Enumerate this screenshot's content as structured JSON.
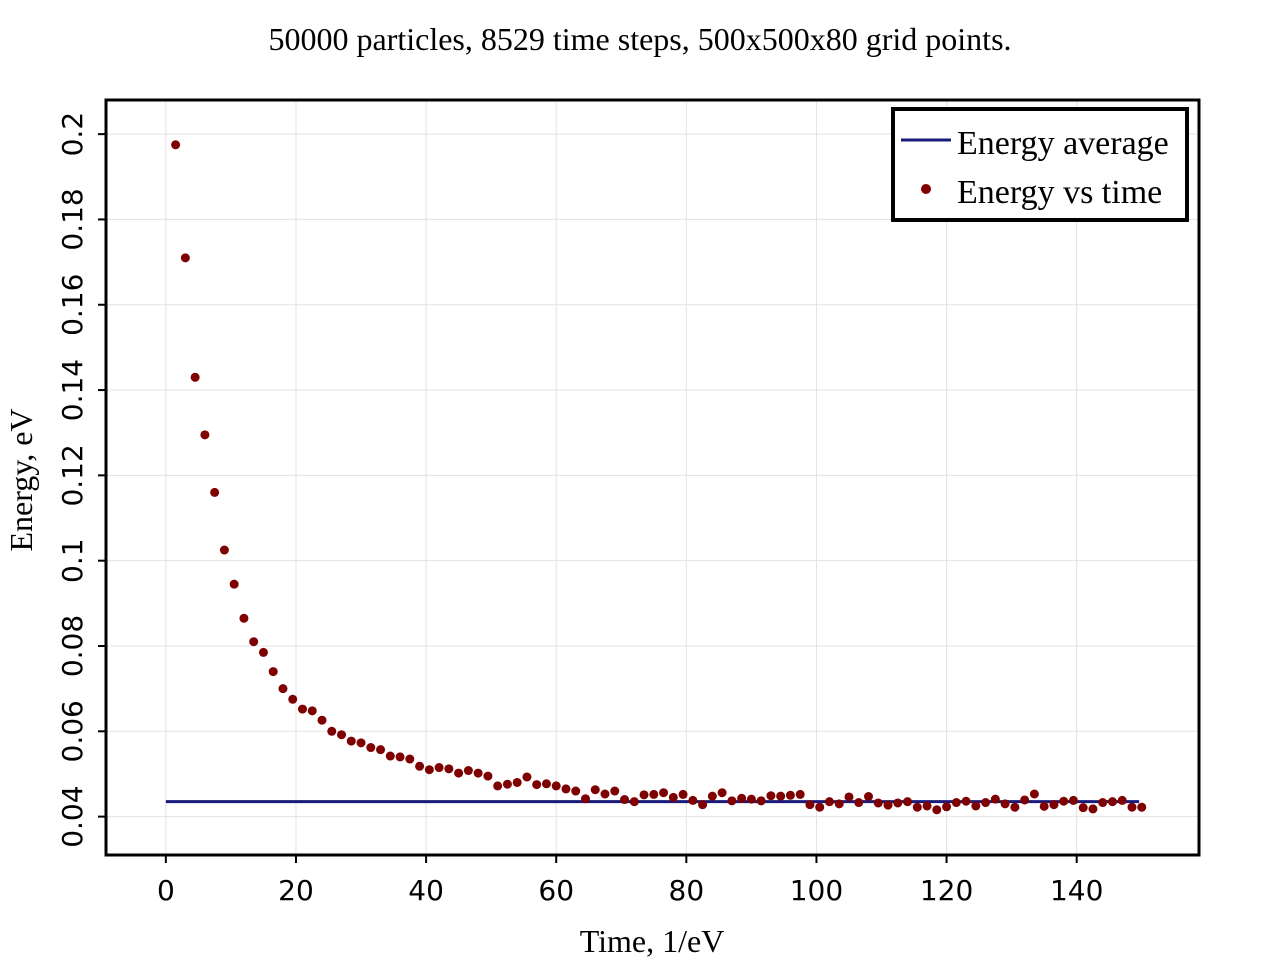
{
  "chart_data": {
    "type": "scatter",
    "title": "50000 particles, 8529 time steps, 500x500x80 grid points.",
    "xlabel": "Time, 1/eV",
    "ylabel": "Energy, eV",
    "xlim": [
      -9.2,
      158.8
    ],
    "ylim": [
      0.031,
      0.208
    ],
    "xticks": [
      0,
      20,
      40,
      60,
      80,
      100,
      120,
      140
    ],
    "xtick_labels": [
      "0",
      "20",
      "40",
      "60",
      "80",
      "100",
      "120",
      "140"
    ],
    "yticks": [
      0.04,
      0.06,
      0.08,
      0.1,
      0.12,
      0.14,
      0.16,
      0.18,
      0.2
    ],
    "ytick_labels": [
      "0.04",
      "0.06",
      "0.08",
      "0.1",
      "0.12",
      "0.14",
      "0.16",
      "0.18",
      "0.2"
    ],
    "grid": true,
    "legend_position": "top-right",
    "series": [
      {
        "name": "Energy average",
        "kind": "line",
        "color": "#1a1a7a",
        "x": [
          0,
          149.6
        ],
        "y": [
          0.0435,
          0.0435
        ]
      },
      {
        "name": "Energy vs time",
        "kind": "scatter",
        "color": "#7f0000",
        "x": [
          1.5,
          3.0,
          4.5,
          6.0,
          7.5,
          9.0,
          10.5,
          12.0,
          13.5,
          15.0,
          16.5,
          18.0,
          19.5,
          21.0,
          22.5,
          24.0,
          25.5,
          27.0,
          28.5,
          30.0,
          31.5,
          33.0,
          34.5,
          36.0,
          37.5,
          39.0,
          40.5,
          42.0,
          43.5,
          45.0,
          46.5,
          48.0,
          49.5,
          51.0,
          52.5,
          54.0,
          55.5,
          57.0,
          58.5,
          60.0,
          61.5,
          63.0,
          64.5,
          66.0,
          67.5,
          69.0,
          70.5,
          72.0,
          73.5,
          75.0,
          76.5,
          78.0,
          79.5,
          81.0,
          82.5,
          84.0,
          85.5,
          87.0,
          88.5,
          90.0,
          91.5,
          93.0,
          94.5,
          96.0,
          97.5,
          99.0,
          100.5,
          102.0,
          103.5,
          105.0,
          106.5,
          108.0,
          109.5,
          111.0,
          112.5,
          114.0,
          115.5,
          117.0,
          118.5,
          120.0,
          121.5,
          123.0,
          124.5,
          126.0,
          127.5,
          129.0,
          130.5,
          132.0,
          133.5,
          135.0,
          136.5,
          138.0,
          139.5,
          141.0,
          142.5,
          144.0,
          145.5,
          147.0,
          148.5,
          150.0
        ],
        "y": [
          0.1975,
          0.171,
          0.143,
          0.1295,
          0.116,
          0.1025,
          0.0945,
          0.0865,
          0.081,
          0.0785,
          0.074,
          0.07,
          0.0675,
          0.0652,
          0.0648,
          0.0626,
          0.06,
          0.0592,
          0.0577,
          0.0573,
          0.0562,
          0.0557,
          0.0542,
          0.054,
          0.0535,
          0.0518,
          0.051,
          0.0515,
          0.0512,
          0.0502,
          0.0508,
          0.0502,
          0.0495,
          0.0472,
          0.0476,
          0.048,
          0.0493,
          0.0475,
          0.0477,
          0.0472,
          0.0465,
          0.046,
          0.0442,
          0.0463,
          0.0453,
          0.046,
          0.044,
          0.0435,
          0.0451,
          0.0452,
          0.0456,
          0.0445,
          0.0452,
          0.0438,
          0.0428,
          0.0448,
          0.0456,
          0.0437,
          0.0443,
          0.0441,
          0.0437,
          0.0449,
          0.0448,
          0.045,
          0.0452,
          0.0428,
          0.0422,
          0.0435,
          0.043,
          0.0446,
          0.0433,
          0.0447,
          0.0432,
          0.0427,
          0.0432,
          0.0435,
          0.0422,
          0.0425,
          0.0416,
          0.0423,
          0.0433,
          0.0436,
          0.0425,
          0.0433,
          0.0441,
          0.043,
          0.0422,
          0.0439,
          0.0453,
          0.0424,
          0.0428,
          0.0436,
          0.0438,
          0.0421,
          0.0418,
          0.0433,
          0.0435,
          0.0438,
          0.0422,
          0.0422
        ]
      }
    ]
  }
}
